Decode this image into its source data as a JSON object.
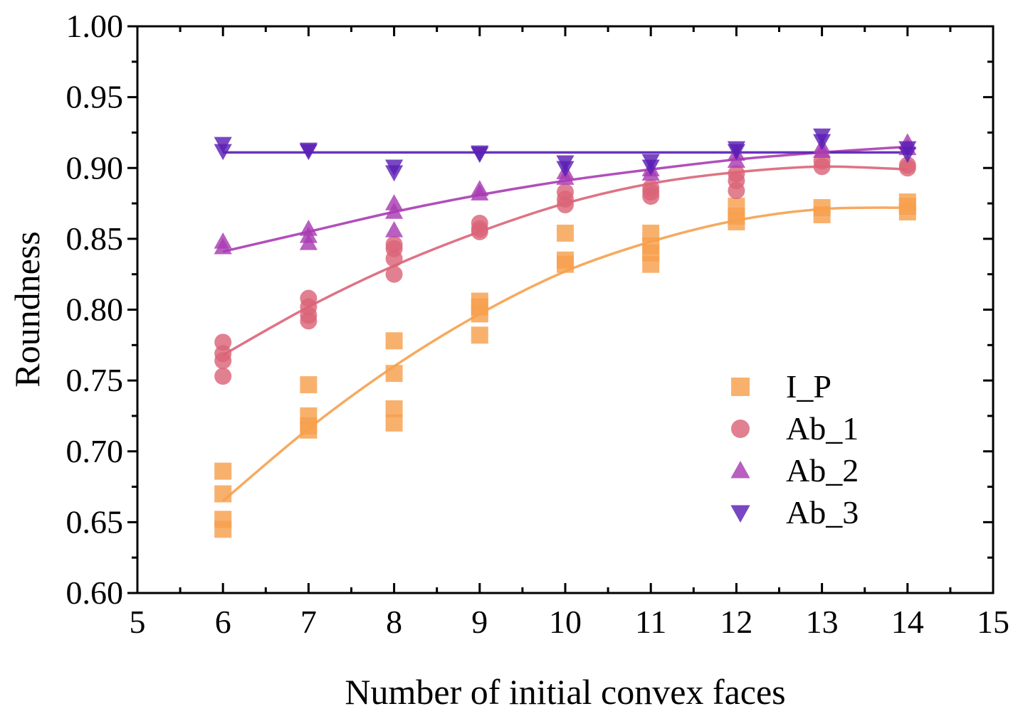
{
  "chart_data": {
    "type": "scatter",
    "title": "",
    "xlabel": "Number of initial convex faces",
    "ylabel": "Roundness",
    "xlim": [
      5,
      15
    ],
    "ylim": [
      0.6,
      1.0
    ],
    "xticks": [
      5,
      6,
      7,
      8,
      9,
      10,
      11,
      12,
      13,
      14,
      15
    ],
    "yticks": [
      0.6,
      0.65,
      0.7,
      0.75,
      0.8,
      0.85,
      0.9,
      0.95,
      1.0
    ],
    "x_tick_labels": [
      "5",
      "6",
      "7",
      "8",
      "9",
      "10",
      "11",
      "12",
      "13",
      "14",
      "15"
    ],
    "y_tick_labels": [
      "0.60",
      "0.65",
      "0.70",
      "0.75",
      "0.80",
      "0.85",
      "0.90",
      "0.95",
      "1.00"
    ],
    "grid": false,
    "legend_position": "lower-right",
    "series": [
      {
        "name": "I_P",
        "marker": "square",
        "color": "#F6A04D",
        "points": [
          [
            6,
            0.686
          ],
          [
            6,
            0.67
          ],
          [
            6,
            0.652
          ],
          [
            6,
            0.645
          ],
          [
            7,
            0.747
          ],
          [
            7,
            0.725
          ],
          [
            7,
            0.718
          ],
          [
            7,
            0.715
          ],
          [
            8,
            0.778
          ],
          [
            8,
            0.755
          ],
          [
            8,
            0.73
          ],
          [
            8,
            0.72
          ],
          [
            9,
            0.806
          ],
          [
            9,
            0.802
          ],
          [
            9,
            0.797
          ],
          [
            9,
            0.782
          ],
          [
            10,
            0.854
          ],
          [
            10,
            0.835
          ],
          [
            10,
            0.832
          ],
          [
            11,
            0.854
          ],
          [
            11,
            0.845
          ],
          [
            11,
            0.84
          ],
          [
            11,
            0.832
          ],
          [
            12,
            0.873
          ],
          [
            12,
            0.866
          ],
          [
            12,
            0.862
          ],
          [
            13,
            0.872
          ],
          [
            13,
            0.867
          ],
          [
            14,
            0.876
          ],
          [
            14,
            0.873
          ],
          [
            14,
            0.869
          ]
        ],
        "fit": [
          [
            6,
            0.665
          ],
          [
            7,
            0.716
          ],
          [
            8,
            0.76
          ],
          [
            9,
            0.797
          ],
          [
            10,
            0.827
          ],
          [
            11,
            0.848
          ],
          [
            12,
            0.863
          ],
          [
            13,
            0.871
          ],
          [
            14,
            0.872
          ]
        ]
      },
      {
        "name": "Ab_1",
        "marker": "circle",
        "color": "#DA6478",
        "points": [
          [
            6,
            0.777
          ],
          [
            6,
            0.769
          ],
          [
            6,
            0.764
          ],
          [
            6,
            0.753
          ],
          [
            7,
            0.808
          ],
          [
            7,
            0.802
          ],
          [
            7,
            0.796
          ],
          [
            7,
            0.792
          ],
          [
            8,
            0.846
          ],
          [
            8,
            0.843
          ],
          [
            8,
            0.836
          ],
          [
            8,
            0.825
          ],
          [
            9,
            0.861
          ],
          [
            9,
            0.857
          ],
          [
            9,
            0.855
          ],
          [
            10,
            0.883
          ],
          [
            10,
            0.878
          ],
          [
            10,
            0.874
          ],
          [
            11,
            0.886
          ],
          [
            11,
            0.883
          ],
          [
            11,
            0.88
          ],
          [
            12,
            0.896
          ],
          [
            12,
            0.891
          ],
          [
            12,
            0.884
          ],
          [
            13,
            0.905
          ],
          [
            13,
            0.901
          ],
          [
            14,
            0.902
          ],
          [
            14,
            0.9
          ]
        ],
        "fit": [
          [
            6,
            0.768
          ],
          [
            7,
            0.802
          ],
          [
            8,
            0.831
          ],
          [
            9,
            0.855
          ],
          [
            10,
            0.875
          ],
          [
            11,
            0.889
          ],
          [
            12,
            0.897
          ],
          [
            13,
            0.901
          ],
          [
            14,
            0.899
          ]
        ]
      },
      {
        "name": "Ab_2",
        "marker": "triangle-up",
        "color": "#A83CB2",
        "points": [
          [
            6,
            0.848
          ],
          [
            6,
            0.844
          ],
          [
            7,
            0.857
          ],
          [
            7,
            0.852
          ],
          [
            7,
            0.847
          ],
          [
            8,
            0.875
          ],
          [
            8,
            0.869
          ],
          [
            8,
            0.856
          ],
          [
            9,
            0.885
          ],
          [
            9,
            0.882
          ],
          [
            10,
            0.897
          ],
          [
            10,
            0.893
          ],
          [
            11,
            0.899
          ],
          [
            11,
            0.896
          ],
          [
            12,
            0.91
          ],
          [
            12,
            0.905
          ],
          [
            13,
            0.915
          ],
          [
            13,
            0.912
          ],
          [
            14,
            0.918
          ],
          [
            14,
            0.914
          ]
        ],
        "fit": [
          [
            6,
            0.841
          ],
          [
            7,
            0.855
          ],
          [
            8,
            0.869
          ],
          [
            9,
            0.881
          ],
          [
            10,
            0.891
          ],
          [
            11,
            0.899
          ],
          [
            12,
            0.906
          ],
          [
            13,
            0.911
          ],
          [
            14,
            0.915
          ]
        ]
      },
      {
        "name": "Ab_3",
        "marker": "triangle-down",
        "color": "#5A1EB4",
        "points": [
          [
            6,
            0.917
          ],
          [
            6,
            0.912
          ],
          [
            7,
            0.913
          ],
          [
            7,
            0.912
          ],
          [
            8,
            0.901
          ],
          [
            8,
            0.897
          ],
          [
            9,
            0.911
          ],
          [
            9,
            0.91
          ],
          [
            10,
            0.904
          ],
          [
            10,
            0.9
          ],
          [
            11,
            0.905
          ],
          [
            11,
            0.901
          ],
          [
            12,
            0.914
          ],
          [
            12,
            0.912
          ],
          [
            13,
            0.923
          ],
          [
            13,
            0.919
          ],
          [
            14,
            0.914
          ],
          [
            14,
            0.91
          ]
        ],
        "fit": [
          [
            6,
            0.911
          ],
          [
            14,
            0.911
          ]
        ]
      }
    ]
  }
}
